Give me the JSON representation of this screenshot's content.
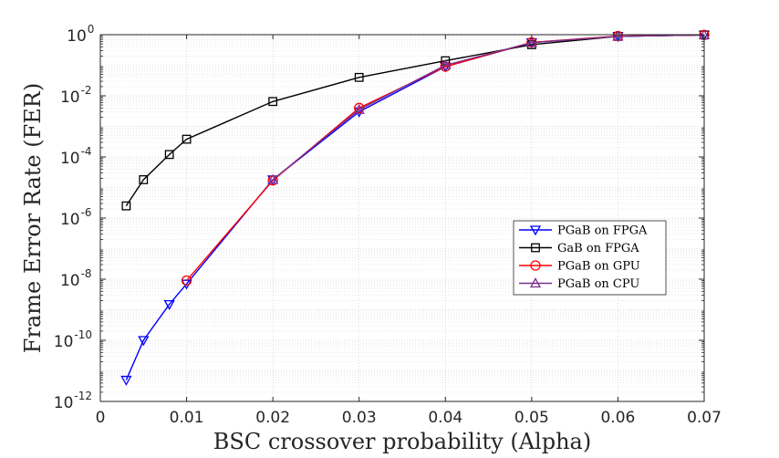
{
  "chart_data": {
    "type": "line",
    "xlabel": "BSC crossover probability (Alpha)",
    "ylabel": "Frame Error Rate (FER)",
    "x_scale": "linear",
    "y_scale": "log",
    "xlim": [
      0,
      0.07
    ],
    "ylim_exp": [
      -12,
      0
    ],
    "x_ticks": [
      0,
      0.01,
      0.02,
      0.03,
      0.04,
      0.05,
      0.06,
      0.07
    ],
    "x_tick_labels": [
      "0",
      "0.01",
      "0.02",
      "0.03",
      "0.04",
      "0.05",
      "0.06",
      "0.07"
    ],
    "y_tick_exponents": [
      -12,
      -10,
      -8,
      -6,
      -4,
      -2,
      0
    ],
    "y_tick_base": "10",
    "grid": true,
    "legend_position": "right",
    "series": [
      {
        "name": "PGaB on FPGA",
        "color": "#0000ff",
        "marker": "triangle-down",
        "x": [
          0.003,
          0.005,
          0.008,
          0.01,
          0.02,
          0.03,
          0.04,
          0.05,
          0.06,
          0.07
        ],
        "y": [
          5e-12,
          1e-10,
          1.5e-09,
          7e-09,
          1.8e-05,
          0.003,
          0.09,
          0.55,
          0.88,
          0.98
        ]
      },
      {
        "name": "GaB on FPGA",
        "color": "#000000",
        "marker": "square",
        "x": [
          0.003,
          0.005,
          0.008,
          0.01,
          0.02,
          0.03,
          0.04,
          0.05,
          0.06,
          0.07
        ],
        "y": [
          2.5e-06,
          1.8e-05,
          0.00012,
          0.00038,
          0.0065,
          0.04,
          0.14,
          0.47,
          0.88,
          0.98
        ]
      },
      {
        "name": "PGaB on GPU",
        "color": "#ff0000",
        "marker": "circle",
        "x": [
          0.01,
          0.02,
          0.03,
          0.04,
          0.05,
          0.06,
          0.07
        ],
        "y": [
          9e-09,
          1.7e-05,
          0.004,
          0.09,
          0.56,
          0.9,
          0.98
        ]
      },
      {
        "name": "PGaB on CPU",
        "color": "#7e2f8e",
        "marker": "triangle-up",
        "x": [
          0.02,
          0.03,
          0.04,
          0.05,
          0.06,
          0.07
        ],
        "y": [
          1.8e-05,
          0.0035,
          0.1,
          0.55,
          0.88,
          0.98
        ]
      }
    ]
  }
}
